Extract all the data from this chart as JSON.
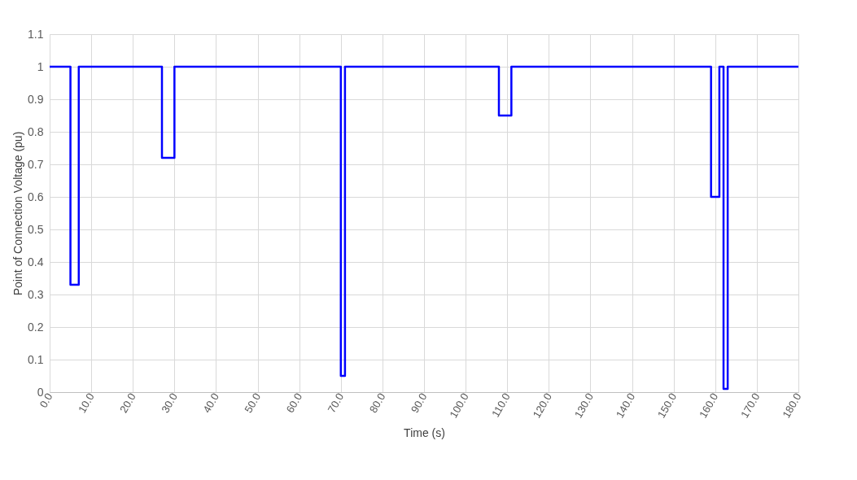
{
  "chart_data": {
    "type": "step",
    "xlabel": "Time (s)",
    "ylabel": "Point of Connection Voltage (pu)",
    "x": [
      0,
      5,
      7,
      27,
      30,
      70,
      71,
      108,
      111,
      159,
      161,
      162,
      163,
      180
    ],
    "series": [
      {
        "color": "#0000ff",
        "values": [
          1,
          0.33,
          1,
          0.72,
          1,
          0.05,
          1,
          0.85,
          1,
          0.6,
          1,
          0.01,
          1,
          1
        ]
      }
    ],
    "xlim": [
      0,
      180
    ],
    "xticks": [
      {
        "value": 0,
        "label": "0.0"
      },
      {
        "value": 10,
        "label": "10.0"
      },
      {
        "value": 20,
        "label": "20.0"
      },
      {
        "value": 30,
        "label": "30.0"
      },
      {
        "value": 40,
        "label": "40.0"
      },
      {
        "value": 50,
        "label": "50.0"
      },
      {
        "value": 60,
        "label": "60.0"
      },
      {
        "value": 70,
        "label": "70.0"
      },
      {
        "value": 80,
        "label": "80.0"
      },
      {
        "value": 90,
        "label": "90.0"
      },
      {
        "value": 100,
        "label": "100.0"
      },
      {
        "value": 110,
        "label": "110.0"
      },
      {
        "value": 120,
        "label": "120.0"
      },
      {
        "value": 130,
        "label": "130.0"
      },
      {
        "value": 140,
        "label": "140.0"
      },
      {
        "value": 150,
        "label": "150.0"
      },
      {
        "value": 160,
        "label": "160.0"
      },
      {
        "value": 170,
        "label": "170.0"
      },
      {
        "value": 180,
        "label": "180.0"
      }
    ],
    "ylim": [
      0,
      1.1
    ],
    "yticks": [
      0,
      0.1,
      0.2,
      0.3,
      0.4,
      0.5,
      0.6,
      0.7,
      0.8,
      0.9,
      1,
      1.1
    ],
    "grid": true,
    "marker": "none",
    "line_style": "solid"
  }
}
